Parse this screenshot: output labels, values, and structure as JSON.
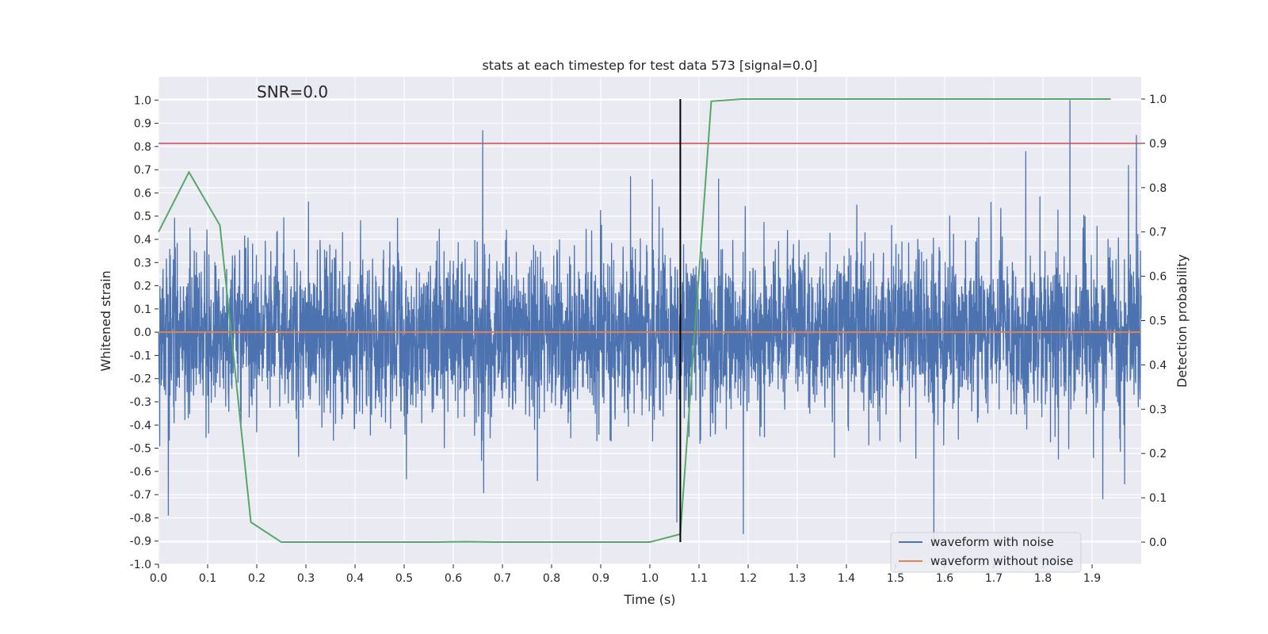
{
  "chart_data": {
    "type": "line",
    "title": "stats at each timestep for test data 573 [signal=0.0]",
    "xlabel": "Time (s)",
    "ylabel": "Whitened strain",
    "y2label": "Detection probability",
    "xlim": [
      0.0,
      2.0
    ],
    "ylim": [
      -1.0,
      1.1
    ],
    "y2lim": [
      -0.05,
      1.05
    ],
    "xticks": [
      "0.0",
      "0.1",
      "0.2",
      "0.3",
      "0.4",
      "0.5",
      "0.6",
      "0.7",
      "0.8",
      "0.9",
      "1.0",
      "1.1",
      "1.2",
      "1.3",
      "1.4",
      "1.5",
      "1.6",
      "1.7",
      "1.8",
      "1.9"
    ],
    "yticks": [
      "-1.0",
      "-0.9",
      "-0.8",
      "-0.7",
      "-0.6",
      "-0.5",
      "-0.4",
      "-0.3",
      "-0.2",
      "-0.1",
      "0.0",
      "0.1",
      "0.2",
      "0.3",
      "0.4",
      "0.5",
      "0.6",
      "0.7",
      "0.8",
      "0.9",
      "1.0"
    ],
    "y2ticks": [
      "0.0",
      "0.1",
      "0.2",
      "0.3",
      "0.4",
      "0.5",
      "0.6",
      "0.7",
      "0.8",
      "0.9",
      "1.0"
    ],
    "grid": true,
    "annotation": "SNR=0.0",
    "series": [
      {
        "name": "waveform with noise",
        "color": "#4c72b0",
        "sampling": "dense noise, 2048 Hz over 0.0–2.0 s, mostly within ±0.5, peaks near 0.87 at 0.66 s and 1.0 at 1.855 s",
        "peaks": [
          {
            "x": 0.66,
            "y": 0.87
          },
          {
            "x": 1.855,
            "y": 1.0
          },
          {
            "x": 1.765,
            "y": 0.78
          },
          {
            "x": 1.578,
            "y": -0.9
          },
          {
            "x": 1.19,
            "y": -0.87
          },
          {
            "x": 1.055,
            "y": -0.82
          },
          {
            "x": 0.02,
            "y": -0.79
          },
          {
            "x": 1.99,
            "y": 0.85
          }
        ]
      },
      {
        "name": "waveform without noise",
        "color": "#dd8452",
        "x": [
          0.0,
          2.0
        ],
        "y": [
          0.0,
          0.0
        ]
      }
    ],
    "detection_probability": {
      "color": "#55a868",
      "x": [
        0.0,
        0.062,
        0.125,
        0.188,
        0.25,
        0.312,
        0.375,
        0.438,
        0.5,
        0.562,
        0.625,
        0.688,
        0.75,
        0.812,
        0.875,
        0.938,
        1.0,
        1.062,
        1.125,
        1.188,
        1.25,
        1.312,
        1.375,
        1.438,
        1.5,
        1.562,
        1.625,
        1.688,
        1.75,
        1.812,
        1.875,
        1.938
      ],
      "y": [
        0.7,
        0.835,
        0.715,
        0.045,
        0.0,
        0.0,
        0.0,
        0.0,
        0.0,
        0.0,
        0.001,
        0.0,
        0.0,
        0.0,
        0.0,
        0.0,
        0.0,
        0.018,
        0.995,
        1.0,
        1.0,
        1.0,
        1.0,
        1.0,
        1.0,
        1.0,
        1.0,
        1.0,
        1.0,
        1.0,
        1.0,
        1.0
      ]
    },
    "threshold": {
      "value": 0.9,
      "axis": "y2",
      "color": "#c44e52"
    },
    "vertical_marker": {
      "x": 1.062,
      "y_from": 0.0,
      "y_to": 1.0,
      "axis": "y2",
      "color": "#000000"
    },
    "legend": {
      "placement": "lower right",
      "entries": [
        {
          "label": "waveform with noise",
          "color": "#4c72b0"
        },
        {
          "label": "waveform without noise",
          "color": "#dd8452"
        }
      ]
    },
    "colors": {
      "plot_background": "#eaeaf2",
      "grid": "#ffffff"
    }
  }
}
